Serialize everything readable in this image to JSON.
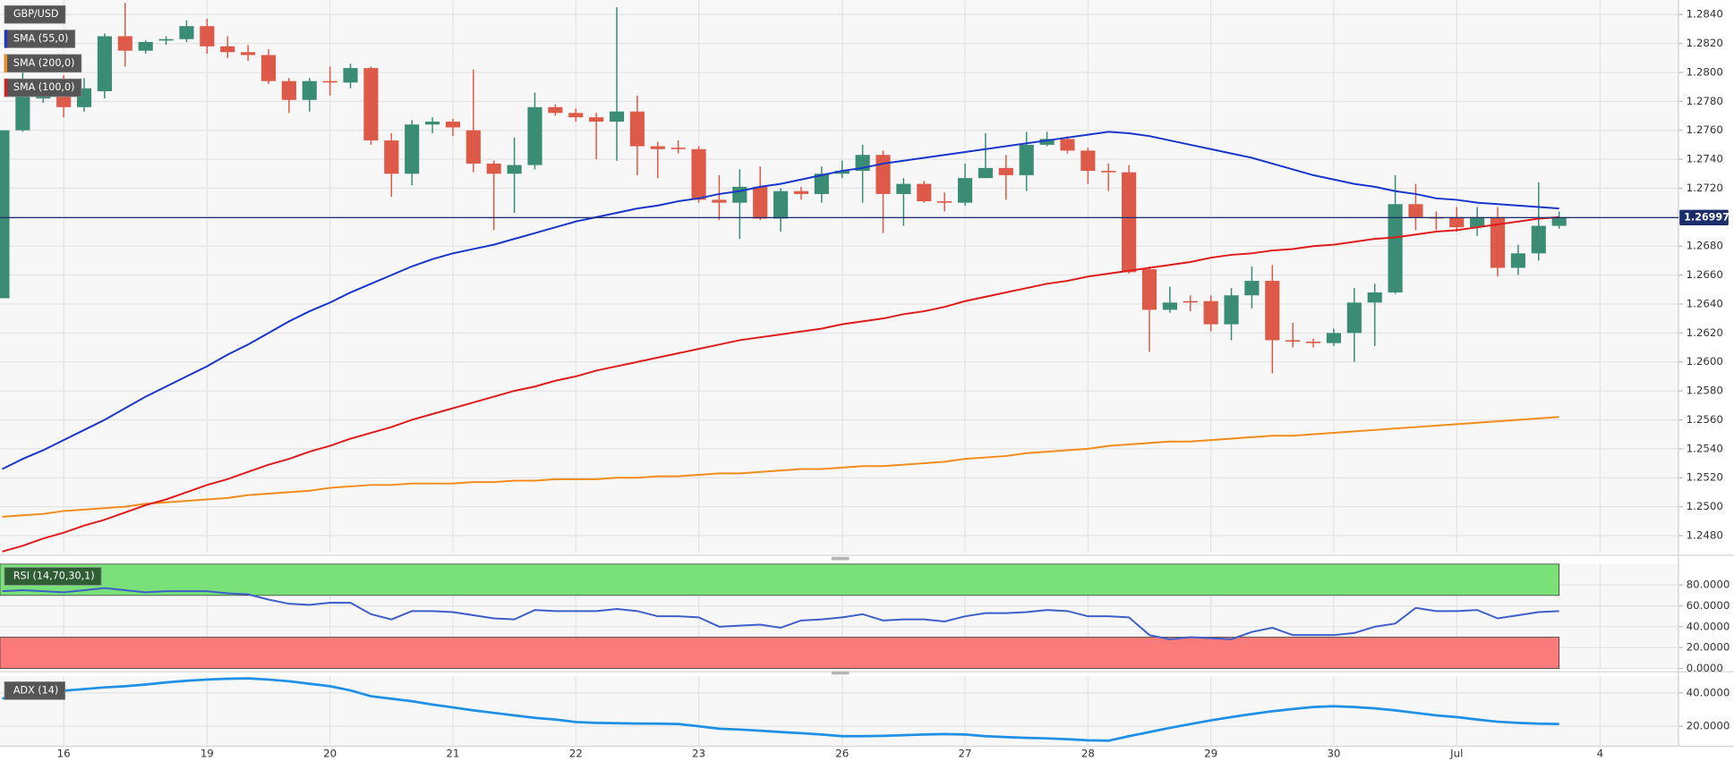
{
  "chart_data": [
    {
      "type": "candlestick",
      "title": "GBP/USD",
      "categories": [
        null,
        null,
        null,
        "16",
        null,
        null,
        null,
        null,
        null,
        null,
        "19",
        null,
        null,
        null,
        null,
        null,
        "20",
        null,
        null,
        null,
        null,
        null,
        "21",
        null,
        null,
        null,
        null,
        null,
        "22",
        null,
        null,
        null,
        null,
        null,
        "23",
        null,
        null,
        null,
        null,
        null,
        null,
        "26",
        null,
        null,
        null,
        null,
        null,
        "27",
        null,
        null,
        null,
        null,
        null,
        "28",
        null,
        null,
        null,
        null,
        null,
        "29",
        null,
        null,
        null,
        null,
        null,
        "30",
        null,
        null,
        null,
        null,
        null,
        "Jul",
        null,
        null,
        null,
        null,
        null,
        null,
        "4"
      ],
      "open": [
        1.2644,
        1.276,
        1.2782,
        1.2795,
        1.2776,
        1.2787,
        1.2825,
        1.2815,
        1.2822,
        1.2823,
        1.2832,
        1.2818,
        1.2814,
        1.2812,
        1.2794,
        1.2781,
        1.2794,
        1.2793,
        1.2803,
        1.2753,
        1.273,
        1.2764,
        1.2766,
        1.276,
        1.2737,
        1.273,
        1.2736,
        1.2776,
        1.2772,
        1.2769,
        1.2766,
        1.2773,
        1.2749,
        1.2748,
        1.2747,
        1.2712,
        1.271,
        1.2721,
        1.2699,
        1.2718,
        1.2716,
        1.273,
        1.2732,
        1.2743,
        1.2716,
        1.2723,
        1.2711,
        1.271,
        1.2727,
        1.2734,
        1.2729,
        1.275,
        1.2754,
        1.2746,
        1.2732,
        1.2731,
        1.2664,
        1.2636,
        1.2642,
        1.2642,
        1.2626,
        1.2646,
        1.2656,
        1.2615,
        1.2614,
        1.2613,
        1.262,
        1.2641,
        1.2648,
        1.2709,
        1.27,
        1.27,
        1.2693,
        1.27,
        1.2665,
        1.2675,
        1.2694,
        null,
        null
      ],
      "high": [
        1.276,
        1.2802,
        1.2789,
        1.2798,
        1.2796,
        1.2827,
        1.2848,
        1.2822,
        1.2825,
        1.2836,
        1.2837,
        1.2825,
        1.2819,
        1.2816,
        1.2796,
        1.2796,
        1.2804,
        1.2806,
        1.2804,
        1.2758,
        1.2767,
        1.2769,
        1.2768,
        1.2802,
        1.2739,
        1.2755,
        1.2786,
        1.2778,
        1.2775,
        1.2772,
        1.2845,
        1.2784,
        1.2752,
        1.2753,
        1.2749,
        1.2729,
        1.2733,
        1.2735,
        1.272,
        1.2721,
        1.2735,
        1.2739,
        1.275,
        1.2746,
        1.2727,
        1.2725,
        1.2717,
        1.2737,
        1.2758,
        1.2743,
        1.2759,
        1.2759,
        1.2756,
        1.2748,
        1.2737,
        1.2736,
        1.2666,
        1.2652,
        1.2646,
        1.2646,
        1.2651,
        1.2666,
        1.2667,
        1.2627,
        1.2616,
        1.2623,
        1.2651,
        1.2654,
        1.2729,
        1.2723,
        1.2704,
        1.2707,
        1.2707,
        1.2707,
        1.2681,
        1.2724,
        1.2704,
        null,
        null
      ],
      "low": [
        1.2644,
        1.2759,
        1.2779,
        1.2769,
        1.2773,
        1.2782,
        1.2804,
        1.2813,
        1.2819,
        1.2821,
        1.2813,
        1.281,
        1.2808,
        1.2792,
        1.2772,
        1.2773,
        1.2784,
        1.2789,
        1.275,
        1.2714,
        1.2722,
        1.2758,
        1.2756,
        1.2731,
        1.2691,
        1.2703,
        1.2733,
        1.277,
        1.2766,
        1.274,
        1.2739,
        1.2729,
        1.2727,
        1.2744,
        1.271,
        1.2698,
        1.2685,
        1.2698,
        1.269,
        1.2712,
        1.271,
        1.2727,
        1.271,
        1.2689,
        1.2694,
        1.271,
        1.2704,
        1.2708,
        1.2727,
        1.2712,
        1.2718,
        1.2749,
        1.2744,
        1.2723,
        1.2718,
        1.2661,
        1.2607,
        1.2634,
        1.2635,
        1.2621,
        1.2615,
        1.2637,
        1.2592,
        1.261,
        1.261,
        1.2611,
        1.26,
        1.2611,
        1.2647,
        1.2691,
        1.2691,
        1.269,
        1.2687,
        1.2659,
        1.266,
        1.267,
        1.2692,
        null,
        null
      ],
      "close": [
        1.276,
        1.2785,
        1.2784,
        1.2776,
        1.2789,
        1.2825,
        1.2815,
        1.2821,
        1.2823,
        1.2832,
        1.2818,
        1.2814,
        1.2812,
        1.2794,
        1.2781,
        1.2794,
        1.2793,
        1.2803,
        1.2753,
        1.273,
        1.2764,
        1.2766,
        1.2762,
        1.2737,
        1.273,
        1.2736,
        1.2776,
        1.2772,
        1.2769,
        1.2766,
        1.2773,
        1.2749,
        1.2747,
        1.2747,
        1.2712,
        1.271,
        1.2721,
        1.2699,
        1.2718,
        1.2716,
        1.273,
        1.2732,
        1.2743,
        1.2716,
        1.2723,
        1.2711,
        1.271,
        1.2727,
        1.2734,
        1.2729,
        1.275,
        1.2754,
        1.2746,
        1.2732,
        1.2731,
        1.2662,
        1.2636,
        1.2641,
        1.2641,
        1.2626,
        1.2646,
        1.2656,
        1.2615,
        1.2614,
        1.2613,
        1.262,
        1.2641,
        1.2648,
        1.2709,
        1.27,
        1.2699,
        1.2693,
        1.27,
        1.2665,
        1.2675,
        1.2694,
        1.27,
        null,
        null
      ],
      "up_color": "#3a8c74",
      "down_color": "#de5a48",
      "series": [
        {
          "name": "SMA (55,0)",
          "color": "#1836cc",
          "values": [
            1.2526,
            1.2533,
            1.2539,
            1.2546,
            1.2553,
            1.256,
            1.2568,
            1.2576,
            1.2583,
            1.259,
            1.2597,
            1.2605,
            1.2612,
            1.262,
            1.2628,
            1.2635,
            1.2641,
            1.2648,
            1.2654,
            1.266,
            1.2666,
            1.2671,
            1.2675,
            1.2678,
            1.2681,
            1.2685,
            1.2689,
            1.2693,
            1.2697,
            1.27,
            1.2703,
            1.2706,
            1.2708,
            1.2711,
            1.2713,
            1.2716,
            1.2718,
            1.2721,
            1.2723,
            1.2726,
            1.2729,
            1.2732,
            1.2734,
            1.2737,
            1.2739,
            1.2741,
            1.2743,
            1.2745,
            1.2747,
            1.2749,
            1.2751,
            1.2753,
            1.2755,
            1.2757,
            1.2759,
            1.2758,
            1.2756,
            1.2753,
            1.275,
            1.2747,
            1.2744,
            1.2741,
            1.2737,
            1.2733,
            1.2729,
            1.2726,
            1.2723,
            1.2721,
            1.2718,
            1.2716,
            1.2713,
            1.2712,
            1.271,
            1.2709,
            1.2708,
            1.2707,
            1.2706,
            null,
            null
          ]
        },
        {
          "name": "SMA (200,0)",
          "color": "#f28c1c",
          "values": [
            1.2493,
            1.2494,
            1.2495,
            1.2497,
            1.2498,
            1.2499,
            1.25,
            1.2502,
            1.2503,
            1.2504,
            1.2505,
            1.2506,
            1.2508,
            1.2509,
            1.251,
            1.2511,
            1.2513,
            1.2514,
            1.2515,
            1.2515,
            1.2516,
            1.2516,
            1.2516,
            1.2517,
            1.2517,
            1.2518,
            1.2518,
            1.2519,
            1.2519,
            1.2519,
            1.252,
            1.252,
            1.2521,
            1.2521,
            1.2522,
            1.2523,
            1.2523,
            1.2524,
            1.2525,
            1.2526,
            1.2526,
            1.2527,
            1.2528,
            1.2528,
            1.2529,
            1.253,
            1.2531,
            1.2533,
            1.2534,
            1.2535,
            1.2537,
            1.2538,
            1.2539,
            1.254,
            1.2542,
            1.2543,
            1.2544,
            1.2545,
            1.2545,
            1.2546,
            1.2547,
            1.2548,
            1.2549,
            1.2549,
            1.255,
            1.2551,
            1.2552,
            1.2553,
            1.2554,
            1.2555,
            1.2556,
            1.2557,
            1.2558,
            1.2559,
            1.256,
            1.2561,
            1.2562,
            null,
            null
          ]
        },
        {
          "name": "SMA (100,0)",
          "color": "#e01b1b",
          "values": [
            1.2469,
            1.2473,
            1.2478,
            1.2482,
            1.2487,
            1.2491,
            1.2496,
            1.2501,
            1.2505,
            1.251,
            1.2515,
            1.2519,
            1.2524,
            1.2529,
            1.2533,
            1.2538,
            1.2542,
            1.2547,
            1.2551,
            1.2555,
            1.256,
            1.2564,
            1.2568,
            1.2572,
            1.2576,
            1.258,
            1.2583,
            1.2587,
            1.259,
            1.2594,
            1.2597,
            1.26,
            1.2603,
            1.2606,
            1.2609,
            1.2612,
            1.2615,
            1.2617,
            1.2619,
            1.2621,
            1.2623,
            1.2626,
            1.2628,
            1.263,
            1.2633,
            1.2635,
            1.2638,
            1.2642,
            1.2645,
            1.2648,
            1.2651,
            1.2654,
            1.2656,
            1.2659,
            1.2661,
            1.2663,
            1.2665,
            1.2667,
            1.2669,
            1.2672,
            1.2674,
            1.2675,
            1.2677,
            1.2678,
            1.268,
            1.2681,
            1.2683,
            1.2685,
            1.2686,
            1.2688,
            1.269,
            1.2691,
            1.2693,
            1.2695,
            1.2697,
            1.2699,
            1.27,
            null,
            null
          ]
        }
      ],
      "ylim": [
        1.2468,
        1.285
      ],
      "yticks": [
        {
          "value": 1.248,
          "label": "1.2480"
        },
        {
          "value": 1.25,
          "label": "1.2500"
        },
        {
          "value": 1.252,
          "label": "1.2520"
        },
        {
          "value": 1.254,
          "label": "1.2540"
        },
        {
          "value": 1.256,
          "label": "1.2560"
        },
        {
          "value": 1.258,
          "label": "1.2580"
        },
        {
          "value": 1.26,
          "label": "1.2600"
        },
        {
          "value": 1.262,
          "label": "1.2620"
        },
        {
          "value": 1.264,
          "label": "1.2640"
        },
        {
          "value": 1.266,
          "label": "1.2660"
        },
        {
          "value": 1.268,
          "label": "1.2680"
        },
        {
          "value": 1.27,
          "label": "1.2700"
        },
        {
          "value": 1.272,
          "label": "1.2720"
        },
        {
          "value": 1.274,
          "label": "1.2740"
        },
        {
          "value": 1.276,
          "label": "1.2760"
        },
        {
          "value": 1.278,
          "label": "1.2780"
        },
        {
          "value": 1.28,
          "label": "1.2800"
        },
        {
          "value": 1.282,
          "label": "1.2820"
        },
        {
          "value": 1.284,
          "label": "1.2840"
        }
      ],
      "last_price": 1.26997,
      "last_price_color": "#1b2d6b",
      "grid": true
    },
    {
      "type": "line",
      "series": [
        {
          "name": "RSI (14,70,30,1)",
          "color": "#3e5fc9",
          "values": [
            74,
            75,
            74,
            73,
            75,
            77,
            75,
            73,
            74,
            74,
            74,
            72,
            71,
            66,
            62,
            61,
            63,
            63,
            52,
            47,
            55,
            55,
            54,
            51,
            48,
            47,
            56,
            55,
            55,
            55,
            57,
            55,
            50,
            50,
            49,
            40,
            41,
            42,
            39,
            46,
            47,
            49,
            52,
            46,
            47,
            47,
            45,
            50,
            53,
            53,
            54,
            56,
            55,
            50,
            50,
            49,
            32,
            28,
            30,
            29,
            28,
            35,
            39,
            32,
            32,
            32,
            34,
            40,
            43,
            58,
            55,
            55,
            56,
            48,
            51,
            54,
            55,
            null,
            null
          ]
        }
      ],
      "upper_band": 70,
      "lower_band": 30,
      "upper_band_color": "#7ae07a",
      "lower_band_color": "#fb7b7b",
      "ylim": [
        0,
        100
      ],
      "yticks": [
        {
          "value": 0,
          "label": "0.0000"
        },
        {
          "value": 20,
          "label": "20.0000"
        },
        {
          "value": 40,
          "label": "40.0000"
        },
        {
          "value": 60,
          "label": "60.0000"
        },
        {
          "value": 80,
          "label": "80.0000"
        }
      ]
    },
    {
      "type": "line",
      "series": [
        {
          "name": "ADX (14)",
          "color": "#1e90e6",
          "values": [
            36.7,
            38,
            40,
            41.3,
            42.3,
            43.3,
            44,
            45,
            46.3,
            47.3,
            48,
            48.5,
            48.7,
            48,
            47,
            45.5,
            44,
            41.5,
            38,
            36.5,
            35,
            33,
            31.3,
            29.5,
            28,
            26.5,
            25,
            24,
            22.5,
            22,
            21.8,
            21.6,
            21.5,
            21.3,
            20,
            18.5,
            18,
            17.3,
            16.5,
            15.8,
            15,
            14,
            14,
            14.2,
            14.6,
            15,
            15.3,
            15,
            14,
            13.5,
            13,
            12.7,
            12.2,
            11.5,
            11.3,
            14,
            16.5,
            19,
            21.3,
            23.5,
            25.5,
            27.3,
            29,
            30.3,
            31.5,
            32,
            31.5,
            30.7,
            29.5,
            28,
            26.5,
            25.5,
            24,
            22.7,
            22,
            21.5,
            21.3,
            null,
            null
          ]
        }
      ],
      "ylim": [
        8,
        50
      ],
      "yticks": [
        {
          "value": 20,
          "label": "20.0000"
        },
        {
          "value": 40,
          "label": "40.0000"
        }
      ]
    }
  ]
}
